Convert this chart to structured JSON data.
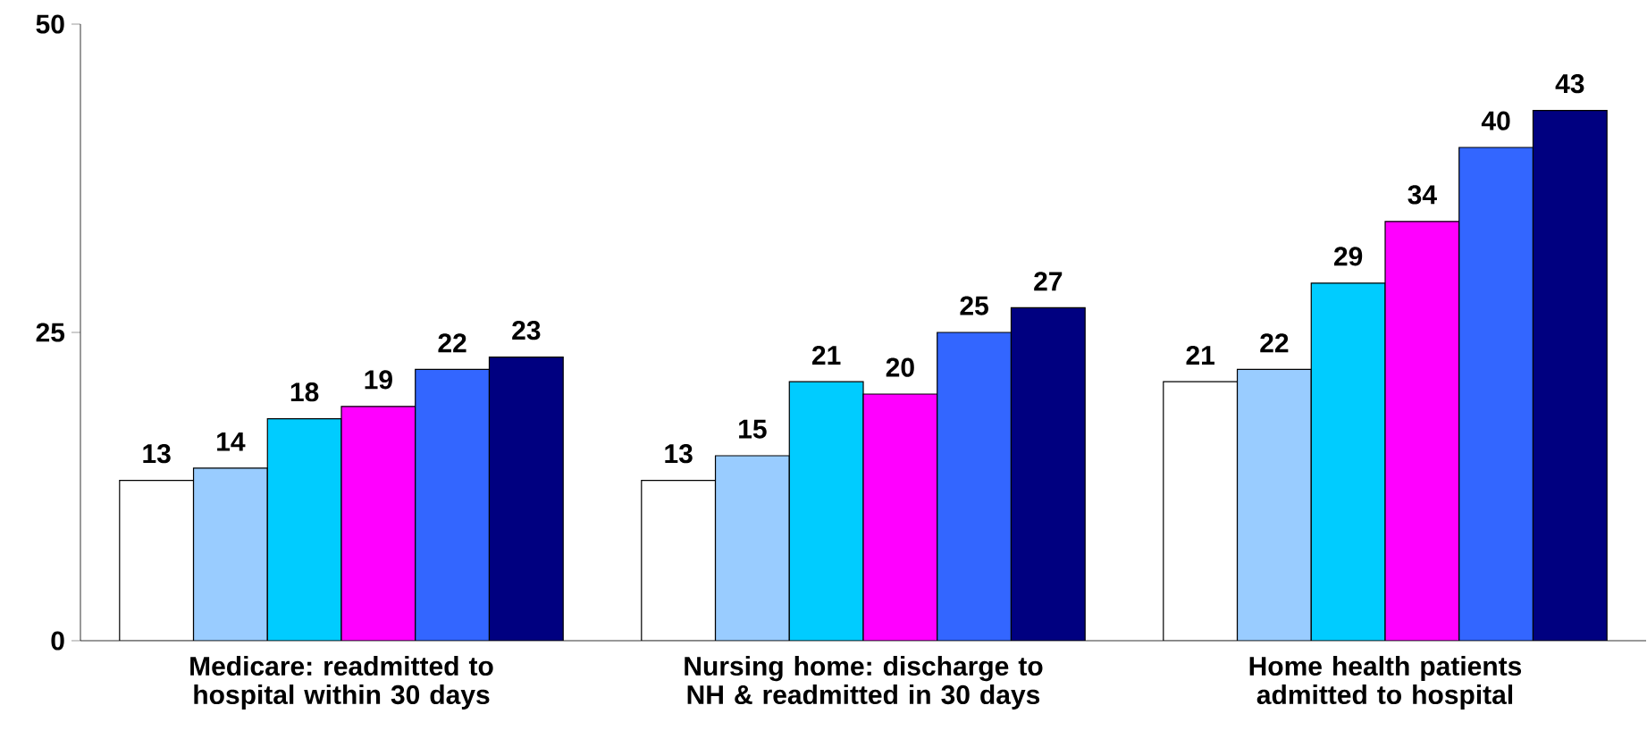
{
  "chart_data": {
    "type": "bar",
    "categories": [
      "Medicare: readmitted to hospital within 30 days",
      "Nursing home: discharge to NH & readmitted in 30 days",
      "Home health patients admitted to hospital"
    ],
    "series": [
      {
        "color": "#ffffff",
        "values": [
          13,
          13,
          21
        ]
      },
      {
        "color": "#99ccff",
        "values": [
          14,
          15,
          22
        ]
      },
      {
        "color": "#00ccff",
        "values": [
          18,
          21,
          29
        ]
      },
      {
        "color": "#ff00ff",
        "values": [
          19,
          20,
          34
        ]
      },
      {
        "color": "#3366ff",
        "values": [
          22,
          25,
          40
        ]
      },
      {
        "color": "#000080",
        "values": [
          23,
          27,
          43
        ]
      }
    ],
    "ylim": [
      0,
      50
    ],
    "yticks": [
      0,
      25,
      50
    ],
    "data_labels": true,
    "grid": false
  }
}
